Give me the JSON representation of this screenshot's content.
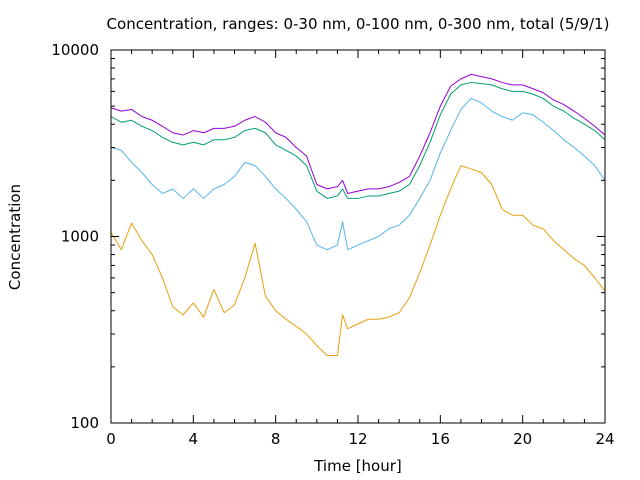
{
  "chart_data": {
    "type": "line",
    "title": "Concentration, ranges: 0-30 nm, 0-100 nm, 0-300 nm, total (5/9/1)",
    "xlabel": "Time [hour]",
    "ylabel": "Concentration",
    "xlim": [
      0,
      24
    ],
    "ylim": [
      100,
      10000
    ],
    "yscale": "log",
    "grid": false,
    "x_ticks": [
      "0",
      "4",
      "8",
      "12",
      "16",
      "20",
      "24"
    ],
    "y_ticks": [
      "100",
      "1000",
      "10000"
    ],
    "x": [
      0,
      0.5,
      1,
      1.5,
      2,
      2.5,
      3,
      3.5,
      4,
      4.5,
      5,
      5.5,
      6,
      6.5,
      7,
      7.5,
      8,
      8.5,
      9,
      9.5,
      10,
      10.5,
      11,
      11.25,
      11.5,
      12,
      12.5,
      13,
      13.5,
      14,
      14.5,
      15,
      15.5,
      16,
      16.5,
      17,
      17.5,
      18,
      18.5,
      19,
      19.5,
      20,
      20.5,
      21,
      21.5,
      22,
      22.5,
      23,
      23.5,
      24
    ],
    "series": [
      {
        "color": "#e5a00d",
        "values": [
          1050,
          850,
          1180,
          950,
          800,
          600,
          420,
          380,
          440,
          370,
          520,
          390,
          430,
          600,
          920,
          480,
          400,
          360,
          330,
          300,
          260,
          230,
          230,
          380,
          320,
          340,
          360,
          360,
          370,
          390,
          470,
          640,
          900,
          1300,
          1800,
          2400,
          2300,
          2200,
          1900,
          1400,
          1300,
          1300,
          1150,
          1100,
          950,
          850,
          760,
          700,
          600,
          510
        ]
      },
      {
        "color": "#56b4e9",
        "values": [
          3000,
          2900,
          2500,
          2200,
          1900,
          1700,
          1800,
          1600,
          1800,
          1600,
          1800,
          1900,
          2100,
          2500,
          2400,
          2100,
          1800,
          1600,
          1400,
          1200,
          900,
          850,
          900,
          1200,
          850,
          900,
          950,
          1000,
          1100,
          1150,
          1300,
          1600,
          2000,
          2800,
          3700,
          4800,
          5500,
          5200,
          4700,
          4400,
          4200,
          4600,
          4500,
          4100,
          3700,
          3300,
          3000,
          2700,
          2400,
          2000
        ]
      },
      {
        "color": "#009e73",
        "values": [
          4400,
          4100,
          4200,
          3900,
          3700,
          3400,
          3200,
          3100,
          3200,
          3100,
          3300,
          3300,
          3400,
          3700,
          3800,
          3600,
          3100,
          2900,
          2700,
          2400,
          1750,
          1600,
          1650,
          1800,
          1600,
          1600,
          1650,
          1650,
          1700,
          1750,
          1900,
          2400,
          3200,
          4500,
          5800,
          6500,
          6700,
          6600,
          6500,
          6200,
          6000,
          6000,
          5800,
          5500,
          5000,
          4700,
          4300,
          4000,
          3700,
          3300
        ]
      },
      {
        "color": "#9400d3",
        "values": [
          4900,
          4700,
          4800,
          4400,
          4200,
          3900,
          3600,
          3500,
          3700,
          3600,
          3800,
          3800,
          3900,
          4200,
          4400,
          4100,
          3600,
          3400,
          3000,
          2700,
          1900,
          1800,
          1850,
          2000,
          1700,
          1750,
          1800,
          1800,
          1850,
          1950,
          2100,
          2700,
          3600,
          5000,
          6400,
          7000,
          7400,
          7200,
          7000,
          6700,
          6500,
          6500,
          6200,
          5900,
          5400,
          5100,
          4700,
          4300,
          3900,
          3500
        ]
      }
    ]
  }
}
